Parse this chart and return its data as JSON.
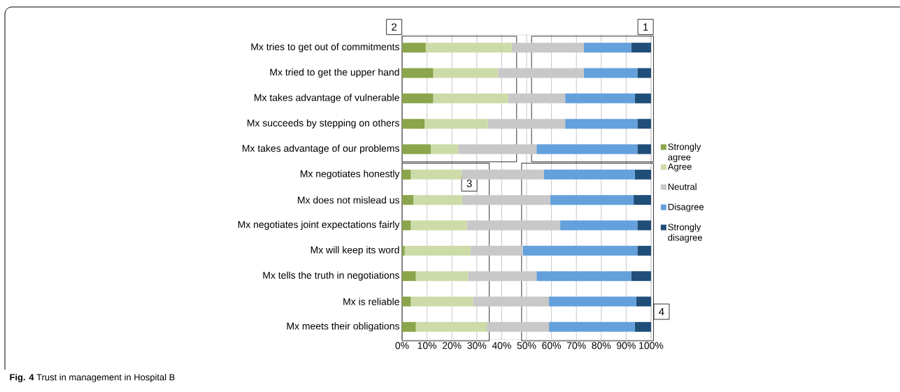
{
  "chart_data": {
    "type": "bar",
    "orientation": "horizontal",
    "stacked": true,
    "categories": [
      "Mx tries to get out of commitments",
      "Mx tried to get the upper hand",
      "Mx takes advantage of vulnerable",
      "Mx succeeds by stepping on others",
      "Mx takes advantage of our problems",
      "Mx negotiates honestly",
      "Mx does not mislead us",
      "Mx negotiates joint expectations fairly",
      "Mx will keep its word",
      "Mx tells the truth in negotiations",
      "Mx is reliable",
      "Mx meets their obligations"
    ],
    "series": [
      {
        "name": "Strongly agree",
        "color": "#8aa54b",
        "values": [
          9.5,
          12.5,
          12.5,
          9,
          11.5,
          3.5,
          4.5,
          3.5,
          1,
          5.5,
          3.5,
          5.5
        ]
      },
      {
        "name": "Agree",
        "color": "#cddba8",
        "values": [
          34.5,
          26,
          30,
          25.5,
          11,
          20.5,
          19.5,
          22.5,
          26.5,
          21,
          25,
          28.5
        ]
      },
      {
        "name": "Neutral",
        "color": "#c8c8c8",
        "values": [
          29,
          34.5,
          23,
          31,
          31.5,
          33,
          35.5,
          37.5,
          21,
          27.5,
          30.5,
          25
        ]
      },
      {
        "name": "Disagree",
        "color": "#63a0dc",
        "values": [
          19,
          21.5,
          28,
          29,
          40.5,
          36.5,
          33.5,
          31,
          46,
          38,
          35,
          34.5
        ]
      },
      {
        "name": "Strongly disagree",
        "color": "#1f4e79",
        "values": [
          8,
          5.5,
          6.5,
          5.5,
          5.5,
          6.5,
          7,
          5.5,
          5.5,
          8,
          6,
          6.5
        ]
      }
    ],
    "xlim": [
      0,
      100
    ],
    "xticks": [
      {
        "value": 0,
        "label": "0%"
      },
      {
        "value": 10,
        "label": "10%"
      },
      {
        "value": 20,
        "label": "20%"
      },
      {
        "value": 30,
        "label": "30%"
      },
      {
        "value": 40,
        "label": "40%"
      },
      {
        "value": 50,
        "label": "50%"
      },
      {
        "value": 60,
        "label": "60%"
      },
      {
        "value": 70,
        "label": "70%"
      },
      {
        "value": 80,
        "label": "80%"
      },
      {
        "value": 90,
        "label": "90%"
      },
      {
        "value": 100,
        "label": "100%"
      }
    ],
    "grid": "x",
    "legend": "right",
    "annotations": [
      "1",
      "2",
      "3",
      "4",
      "**Fig. 4** Trust in management in Hospital B"
    ]
  }
}
